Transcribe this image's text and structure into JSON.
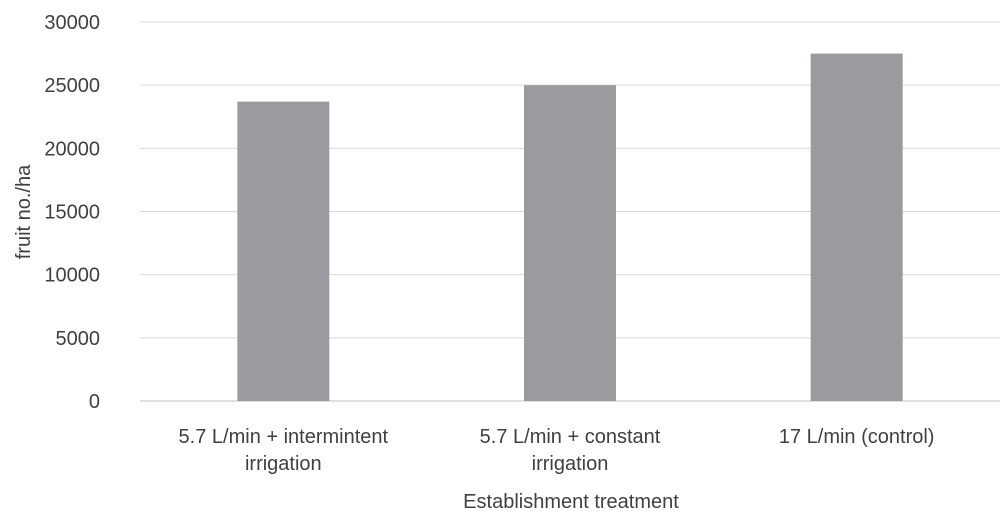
{
  "chart_data": {
    "type": "bar",
    "title": "",
    "xlabel": "Establishment treatment",
    "ylabel": "fruit no./ha",
    "categories": [
      [
        "5.7 L/min + intermintent",
        "irrigation"
      ],
      [
        "5.7 L/min + constant",
        "irrigation"
      ],
      [
        "17 L/min (control)"
      ]
    ],
    "values": [
      23700,
      25000,
      27500
    ],
    "ylim": [
      0,
      30000
    ],
    "yticks": [
      "0",
      "5000",
      "10000",
      "15000",
      "20000",
      "25000",
      "30000"
    ],
    "grid": true,
    "legend": "none",
    "colors": {
      "bar": "#9a9b9e",
      "grid": "#d9d9d9",
      "axis": "#bfbfbf",
      "text": "#404040"
    }
  }
}
